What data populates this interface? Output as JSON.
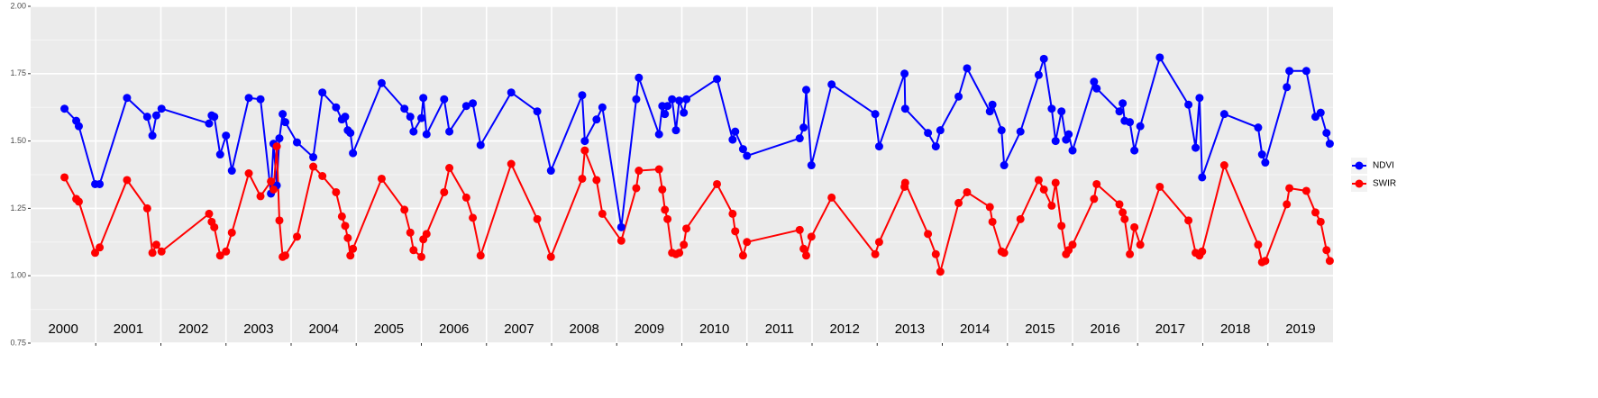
{
  "chart_data": {
    "type": "line",
    "x": [
      2000.52,
      2000.7,
      2000.74,
      2000.99,
      2001.06,
      2001.48,
      2001.79,
      2001.87,
      2001.93,
      2002.01,
      2002.74,
      2002.78,
      2002.82,
      2002.91,
      2003.0,
      2003.09,
      2003.35,
      2003.53,
      2003.69,
      2003.73,
      2003.78,
      2003.82,
      2003.87,
      2003.91,
      2004.09,
      2004.34,
      2004.48,
      2004.69,
      2004.78,
      2004.83,
      2004.87,
      2004.91,
      2004.95,
      2005.39,
      2005.74,
      2005.83,
      2005.88,
      2006.0,
      2006.03,
      2006.08,
      2006.35,
      2006.43,
      2006.69,
      2006.79,
      2006.91,
      2007.38,
      2007.78,
      2007.99,
      2008.47,
      2008.51,
      2008.69,
      2008.78,
      2009.07,
      2009.3,
      2009.34,
      2009.65,
      2009.7,
      2009.74,
      2009.78,
      2009.85,
      2009.91,
      2009.96,
      2010.03,
      2010.07,
      2010.54,
      2010.78,
      2010.82,
      2010.94,
      2011.0,
      2011.81,
      2011.87,
      2011.91,
      2011.99,
      2012.3,
      2012.97,
      2013.03,
      2013.42,
      2013.43,
      2013.78,
      2013.9,
      2013.97,
      2014.25,
      2014.38,
      2014.73,
      2014.77,
      2014.91,
      2014.95,
      2015.2,
      2015.48,
      2015.56,
      2015.68,
      2015.74,
      2015.83,
      2015.9,
      2015.94,
      2016.0,
      2016.33,
      2016.37,
      2016.72,
      2016.77,
      2016.8,
      2016.88,
      2016.95,
      2017.04,
      2017.34,
      2017.78,
      2017.89,
      2017.95,
      2017.99,
      2018.33,
      2018.85,
      2018.91,
      2018.96,
      2019.29,
      2019.33,
      2019.59,
      2019.73,
      2019.81,
      2019.9,
      2019.95
    ],
    "series": [
      {
        "name": "NDVI",
        "color": "#0000ff",
        "values": [
          1.62,
          1.575,
          1.555,
          1.34,
          1.34,
          1.66,
          1.59,
          1.52,
          1.595,
          1.62,
          1.565,
          1.595,
          1.59,
          1.45,
          1.52,
          1.39,
          1.66,
          1.655,
          1.305,
          1.49,
          1.335,
          1.51,
          1.6,
          1.57,
          1.495,
          1.44,
          1.68,
          1.625,
          1.58,
          1.59,
          1.54,
          1.53,
          1.455,
          1.715,
          1.62,
          1.59,
          1.535,
          1.585,
          1.66,
          1.525,
          1.655,
          1.535,
          1.63,
          1.64,
          1.485,
          1.68,
          1.61,
          1.39,
          1.67,
          1.5,
          1.58,
          1.625,
          1.18,
          1.655,
          1.735,
          1.525,
          1.63,
          1.6,
          1.63,
          1.655,
          1.54,
          1.65,
          1.605,
          1.655,
          1.73,
          1.505,
          1.535,
          1.47,
          1.445,
          1.51,
          1.55,
          1.69,
          1.41,
          1.71,
          1.6,
          1.48,
          1.75,
          1.62,
          1.53,
          1.48,
          1.54,
          1.665,
          1.77,
          1.61,
          1.635,
          1.54,
          1.41,
          1.535,
          1.745,
          1.805,
          1.62,
          1.5,
          1.61,
          1.505,
          1.525,
          1.465,
          1.72,
          1.695,
          1.61,
          1.64,
          1.575,
          1.57,
          1.465,
          1.555,
          1.81,
          1.635,
          1.475,
          1.66,
          1.365,
          1.6,
          1.55,
          1.45,
          1.42,
          1.7,
          1.76,
          1.76,
          1.59,
          1.605,
          1.53,
          1.49
        ]
      },
      {
        "name": "SWIR",
        "color": "#ff0000",
        "values": [
          1.365,
          1.285,
          1.275,
          1.085,
          1.105,
          1.355,
          1.25,
          1.085,
          1.115,
          1.09,
          1.23,
          1.2,
          1.18,
          1.075,
          1.09,
          1.16,
          1.38,
          1.295,
          1.35,
          1.32,
          1.48,
          1.205,
          1.07,
          1.075,
          1.145,
          1.405,
          1.37,
          1.31,
          1.22,
          1.185,
          1.14,
          1.075,
          1.1,
          1.36,
          1.245,
          1.16,
          1.095,
          1.07,
          1.135,
          1.155,
          1.31,
          1.4,
          1.29,
          1.215,
          1.075,
          1.415,
          1.21,
          1.07,
          1.36,
          1.465,
          1.355,
          1.23,
          1.13,
          1.325,
          1.39,
          1.395,
          1.32,
          1.245,
          1.21,
          1.085,
          1.08,
          1.085,
          1.115,
          1.175,
          1.34,
          1.23,
          1.165,
          1.075,
          1.125,
          1.17,
          1.1,
          1.075,
          1.145,
          1.29,
          1.08,
          1.125,
          1.33,
          1.345,
          1.155,
          1.08,
          1.015,
          1.27,
          1.31,
          1.255,
          1.2,
          1.09,
          1.085,
          1.21,
          1.355,
          1.32,
          1.26,
          1.345,
          1.185,
          1.08,
          1.095,
          1.115,
          1.285,
          1.34,
          1.265,
          1.235,
          1.21,
          1.08,
          1.18,
          1.115,
          1.33,
          1.205,
          1.085,
          1.075,
          1.09,
          1.41,
          1.115,
          1.05,
          1.055,
          1.265,
          1.325,
          1.315,
          1.235,
          1.2,
          1.095,
          1.055
        ]
      }
    ],
    "xlim": [
      2000,
      2020
    ],
    "xticks": [
      2001,
      2002,
      2003,
      2004,
      2005,
      2006,
      2007,
      2008,
      2009,
      2010,
      2011,
      2012,
      2013,
      2014,
      2015,
      2016,
      2017,
      2018,
      2019
    ],
    "ylim": [
      0.75,
      2
    ],
    "yticks": [
      0.75,
      {
        "value": 1,
        "label": "1.00"
      },
      1.25,
      {
        "value": 1.5,
        "label": "1.50"
      },
      1.75,
      {
        "value": 2,
        "label": "2.00"
      }
    ],
    "grid": true,
    "legend": "right",
    "annotations": [
      {
        "text": "2000",
        "x": 2000.5,
        "y": 0.8
      },
      {
        "text": "2001",
        "x": 2001.5,
        "y": 0.8
      },
      {
        "text": "2002",
        "x": 2002.5,
        "y": 0.8
      },
      {
        "text": "2003",
        "x": 2003.5,
        "y": 0.8
      },
      {
        "text": "2004",
        "x": 2004.5,
        "y": 0.8
      },
      {
        "text": "2005",
        "x": 2005.5,
        "y": 0.8
      },
      {
        "text": "2006",
        "x": 2006.5,
        "y": 0.8
      },
      {
        "text": "2007",
        "x": 2007.5,
        "y": 0.8
      },
      {
        "text": "2008",
        "x": 2008.5,
        "y": 0.8
      },
      {
        "text": "2009",
        "x": 2009.5,
        "y": 0.8
      },
      {
        "text": "2010",
        "x": 2010.5,
        "y": 0.8
      },
      {
        "text": "2011",
        "x": 2011.5,
        "y": 0.8
      },
      {
        "text": "2012",
        "x": 2012.5,
        "y": 0.8
      },
      {
        "text": "2013",
        "x": 2013.5,
        "y": 0.8
      },
      {
        "text": "2014",
        "x": 2014.5,
        "y": 0.8
      },
      {
        "text": "2015",
        "x": 2015.5,
        "y": 0.8
      },
      {
        "text": "2016",
        "x": 2016.5,
        "y": 0.8
      },
      {
        "text": "2017",
        "x": 2017.5,
        "y": 0.8
      },
      {
        "text": "2018",
        "x": 2018.5,
        "y": 0.8
      },
      {
        "text": "2019",
        "x": 2019.5,
        "y": 0.8
      }
    ]
  }
}
